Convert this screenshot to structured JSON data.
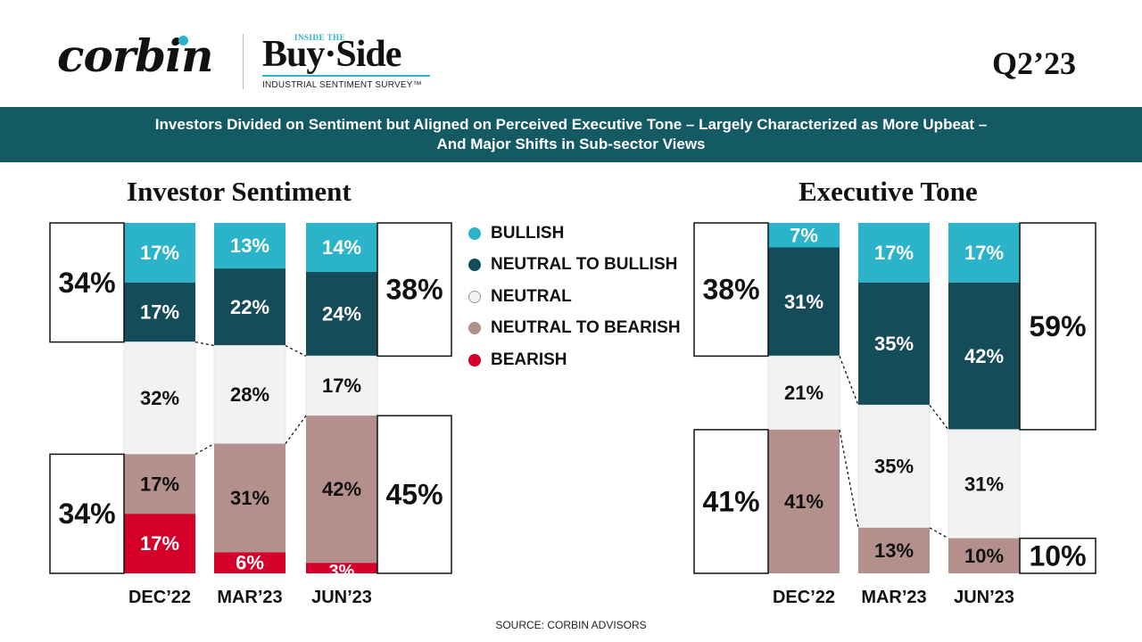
{
  "header": {
    "brand_name": "corbin",
    "partner_small": "INSIDE THE",
    "partner_name": "Buy·Side",
    "partner_subtitle": "INDUSTRIAL SENTIMENT SURVEY™",
    "quarter": "Q2’23"
  },
  "banner": {
    "line1": "Investors Divided on Sentiment but Aligned on Perceived Executive Tone – Largely Characterized as More Upbeat –",
    "line2": "And Major Shifts in Sub-sector Views",
    "color": "#145a64"
  },
  "legend": [
    {
      "label": "BULLISH",
      "color": "#2ab3c9"
    },
    {
      "label": "NEUTRAL TO BULLISH",
      "color": "#154c5a"
    },
    {
      "label": "NEUTRAL",
      "color": "#f2f2f2"
    },
    {
      "label": "NEUTRAL TO BEARISH",
      "color": "#b3908c"
    },
    {
      "label": "BEARISH",
      "color": "#d4002a"
    }
  ],
  "chart_data": [
    {
      "type": "bar",
      "stacked": true,
      "title": "Investor Sentiment",
      "categories": [
        "DEC’22",
        "MAR’23",
        "JUN’23"
      ],
      "series": [
        {
          "name": "BULLISH",
          "values": [
            17,
            13,
            14
          ]
        },
        {
          "name": "NEUTRAL TO BULLISH",
          "values": [
            17,
            22,
            24
          ]
        },
        {
          "name": "NEUTRAL",
          "values": [
            32,
            28,
            17
          ]
        },
        {
          "name": "NEUTRAL TO BEARISH",
          "values": [
            17,
            31,
            42
          ]
        },
        {
          "name": "BEARISH",
          "values": [
            17,
            6,
            3
          ]
        }
      ],
      "annotations": [
        {
          "category": "DEC’22",
          "group": "positive",
          "total": "34%",
          "side": "left"
        },
        {
          "category": "DEC’22",
          "group": "negative",
          "total": "34%",
          "side": "left"
        },
        {
          "category": "JUN’23",
          "group": "positive",
          "total": "38%",
          "side": "right"
        },
        {
          "category": "JUN’23",
          "group": "negative",
          "total": "45%",
          "side": "right"
        }
      ],
      "ylim": [
        0,
        100
      ]
    },
    {
      "type": "bar",
      "stacked": true,
      "title": "Executive Tone",
      "categories": [
        "DEC’22",
        "MAR’23",
        "JUN’23"
      ],
      "series": [
        {
          "name": "BULLISH",
          "values": [
            7,
            17,
            17
          ]
        },
        {
          "name": "NEUTRAL TO BULLISH",
          "values": [
            31,
            35,
            42
          ]
        },
        {
          "name": "NEUTRAL",
          "values": [
            21,
            35,
            31
          ]
        },
        {
          "name": "NEUTRAL TO BEARISH",
          "values": [
            41,
            13,
            10
          ]
        },
        {
          "name": "BEARISH",
          "values": [
            0,
            0,
            0
          ]
        }
      ],
      "annotations": [
        {
          "category": "DEC’22",
          "group": "positive",
          "total": "38%",
          "side": "left"
        },
        {
          "category": "DEC’22",
          "group": "negative",
          "total": "41%",
          "side": "left"
        },
        {
          "category": "JUN’23",
          "group": "positive",
          "total": "59%",
          "side": "right"
        },
        {
          "category": "JUN’23",
          "group": "negative",
          "total": "10%",
          "side": "right"
        }
      ],
      "ylim": [
        0,
        100
      ]
    }
  ],
  "footer": {
    "source": "SOURCE: CORBIN ADVISORS"
  }
}
